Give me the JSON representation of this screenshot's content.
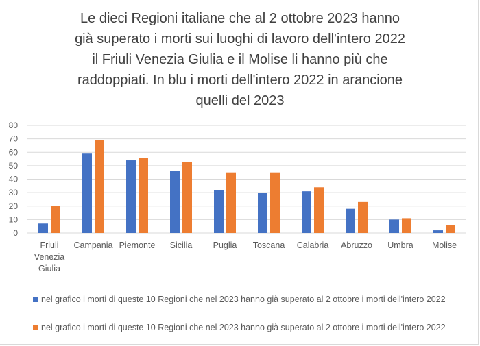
{
  "chart_data": {
    "type": "bar",
    "title": "Le dieci Regioni italiane  che al 2 ottobre 2023 hanno già superato i morti sui luoghi di lavoro dell'intero 2022 il Friuli Venezia Giulia e il Molise li hanno più che raddoppiati. In blu i morti dell'intero  2022 in arancione quelli del 2023",
    "title_lines": [
      "Le dieci Regioni italiane  che al 2 ottobre 2023 hanno",
      "già superato i morti sui luoghi di lavoro dell'intero 2022",
      "il Friuli Venezia Giulia e il Molise li hanno più che",
      "raddoppiati. In blu i morti dell'intero  2022 in arancione",
      "quelli del 2023"
    ],
    "categories": [
      "Friuli Venezia Giulia",
      "Campania",
      "Piemonte",
      "Sicilia",
      "Puglia",
      "Toscana",
      "Calabria",
      "Abruzzo",
      "Umbra",
      "Molise"
    ],
    "series": [
      {
        "name": "nel grafico i morti di queste 10 Regioni che nel 2023 hanno già superato al 2 ottobre i morti dell'intero 2022",
        "color": "#4472c4",
        "values": [
          7,
          59,
          54,
          46,
          32,
          30,
          31,
          18,
          10,
          2
        ]
      },
      {
        "name": "nel grafico i morti di queste 10 Regioni che nel 2023 hanno già superato al 2 ottobre i morti dell'intero 2022",
        "color": "#ed7d31",
        "values": [
          20,
          69,
          56,
          53,
          45,
          45,
          34,
          23,
          11,
          6
        ]
      }
    ],
    "ylim": [
      0,
      80
    ],
    "yticks": [
      0,
      10,
      20,
      30,
      40,
      50,
      60,
      70,
      80
    ],
    "grid": true,
    "legend": "bottom",
    "xlabel": "",
    "ylabel": ""
  }
}
